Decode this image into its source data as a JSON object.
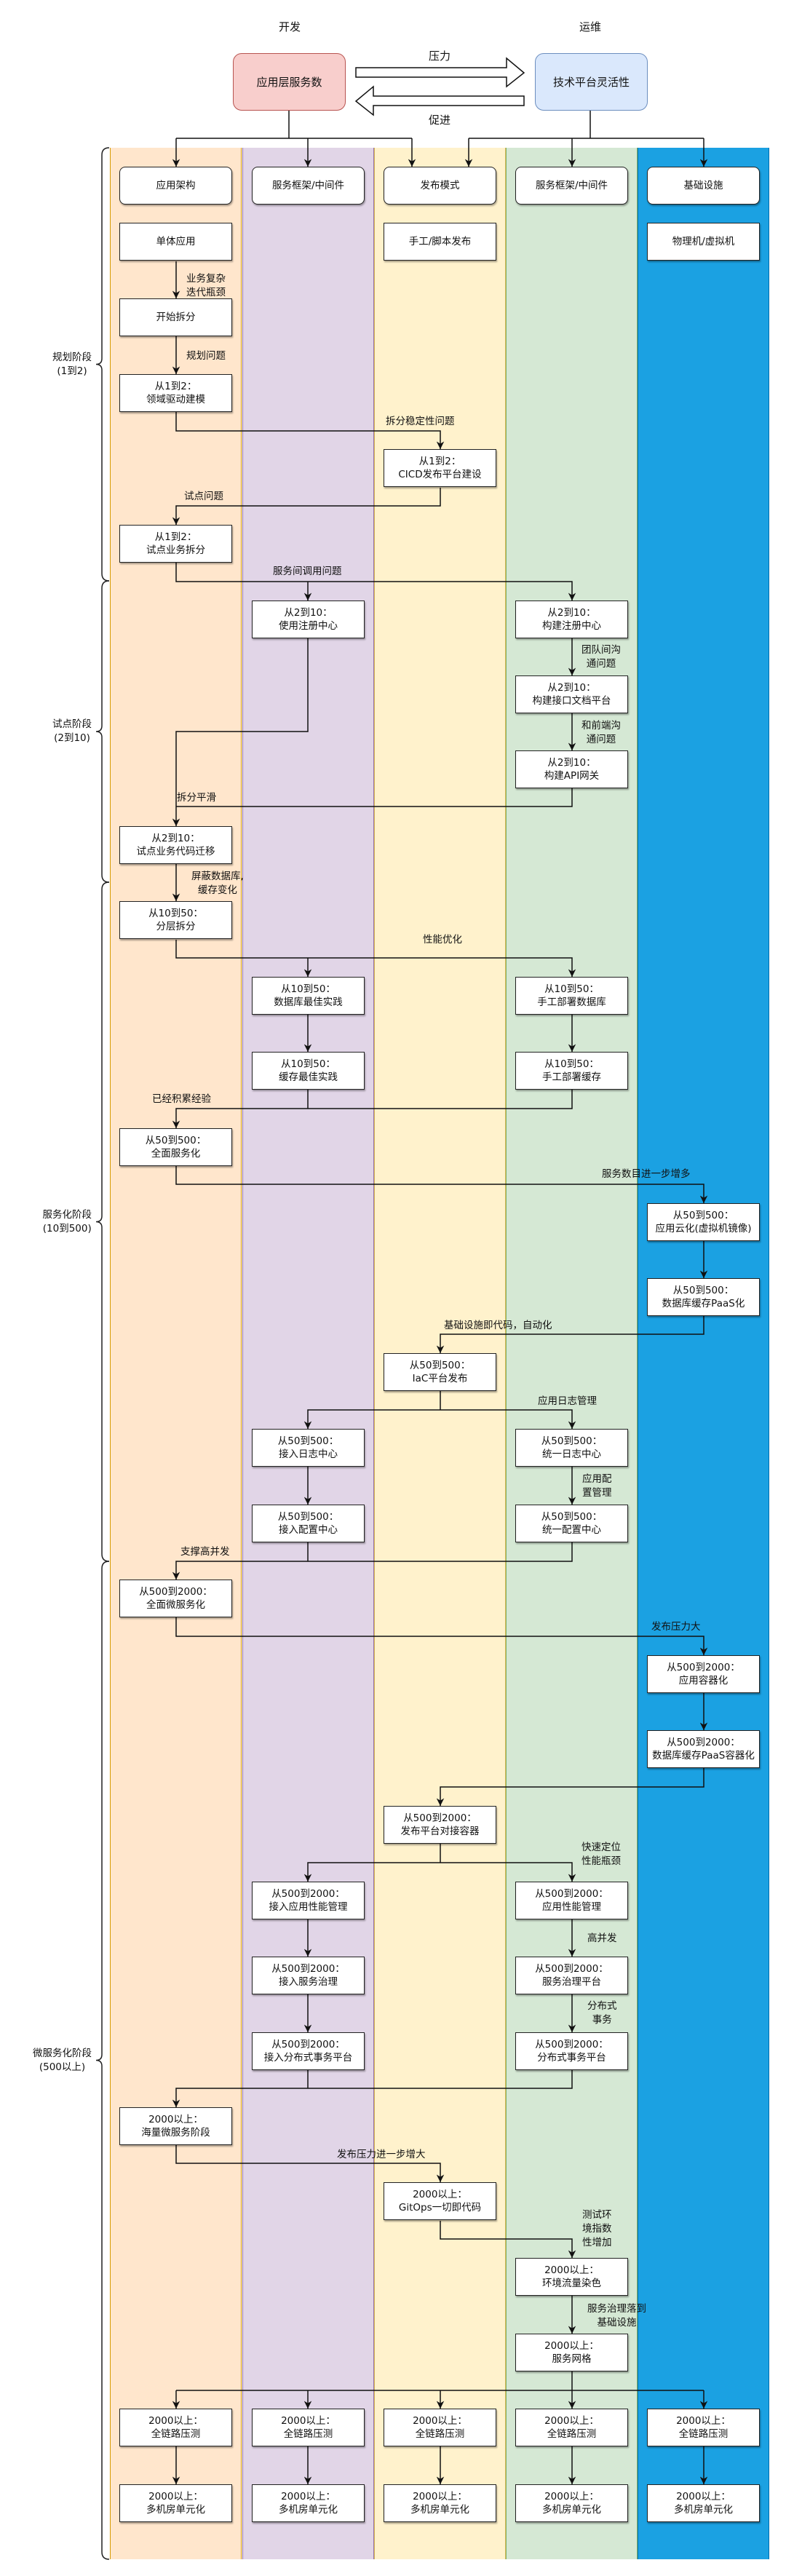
{
  "header": {
    "dev": "开发",
    "ops": "运维"
  },
  "top": {
    "left_box": "应用层服务数",
    "right_box": "技术平台灵活性",
    "pressure": "压力",
    "promote": "促进",
    "left_color": "#f8cecc",
    "right_color": "#dae8fc"
  },
  "lanes": [
    {
      "header": "应用架构",
      "color": "#ffe6cc",
      "border": "#d79b00"
    },
    {
      "header": "服务框架/中间件",
      "color": "#e1d5e7",
      "border": "#9673a6"
    },
    {
      "header": "发布模式",
      "color": "#fff2cc",
      "border": "#d6b656"
    },
    {
      "header": "服务框架/中间件",
      "color": "#d5e8d4",
      "border": "#82b366"
    },
    {
      "header": "基础设施",
      "color": "#1ba1e2",
      "border": "#006eaf"
    }
  ],
  "phases": [
    "规划阶段\n(1到2)",
    "试点阶段\n(2到10)",
    "服务化阶段\n(10到500)",
    "微服务化阶段\n(500以上)"
  ],
  "boxes": [
    "单体应用",
    "手工/脚本发布",
    "物理机/虚拟机",
    "开始拆分",
    "从1到2：\n领域驱动建模",
    "从1到2：\nCICD发布平台建设",
    "从1到2：\n试点业务拆分",
    "从2到10：\n使用注册中心",
    "从2到10：\n构建注册中心",
    "从2到10：\n构建接口文档平台",
    "从2到10：\n构建API网关",
    "从2到10：\n试点业务代码迁移",
    "从10到50：\n分层拆分",
    "从10到50：\n数据库最佳实践",
    "从10到50：\n手工部署数据库",
    "从10到50：\n缓存最佳实践",
    "从10到50：\n手工部署缓存",
    "从50到500：\n全面服务化",
    "从50到500：\n应用云化(虚拟机镜像)",
    "从50到500：\n数据库缓存PaaS化",
    "从50到500：\nIaC平台发布",
    "从50到500：\n接入日志中心",
    "从50到500：\n统一日志中心",
    "从50到500：\n接入配置中心",
    "从50到500：\n统一配置中心",
    "从500到2000：\n全面微服务化",
    "从500到2000：\n应用容器化",
    "从500到2000：\n数据库缓存PaaS容器化",
    "从500到2000：\n发布平台对接容器",
    "从500到2000：\n接入应用性能管理",
    "从500到2000：\n应用性能管理",
    "从500到2000：\n接入服务治理",
    "从500到2000：\n服务治理平台",
    "从500到2000：\n接入分布式事务平台",
    "从500到2000：\n分布式事务平台",
    "2000以上：\n海量微服务阶段",
    "2000以上：\nGitOps一切即代码",
    "2000以上：\n环境流量染色",
    "2000以上：\n服务网格",
    "2000以上：\n全链路压测",
    "2000以上：\n全链路压测",
    "2000以上：\n全链路压测",
    "2000以上：\n全链路压测",
    "2000以上：\n全链路压测",
    "2000以上：\n多机房单元化",
    "2000以上：\n多机房单元化",
    "2000以上：\n多机房单元化",
    "2000以上：\n多机房单元化",
    "2000以上：\n多机房单元化"
  ],
  "edge_labels": [
    "业务复杂\n迭代瓶颈",
    "规划问题",
    "拆分稳定性问题",
    "试点问题",
    "服务间调用问题",
    "团队间沟\n通问题",
    "和前端沟\n通问题",
    "拆分平滑",
    "屏蔽数据库,\n缓存变化",
    "性能优化",
    "已经积累经验",
    "服务数目进一步增多",
    "基础设施即代码，自动化",
    "应用日志管理",
    "应用配\n置管理",
    "支撑高并发",
    "发布压力大",
    "快速定位\n性能瓶颈",
    "高并发",
    "分布式\n事务",
    "发布压力进一步增大",
    "测试环\n境指数\n性增加",
    "服务治理落到\n基础设施"
  ]
}
